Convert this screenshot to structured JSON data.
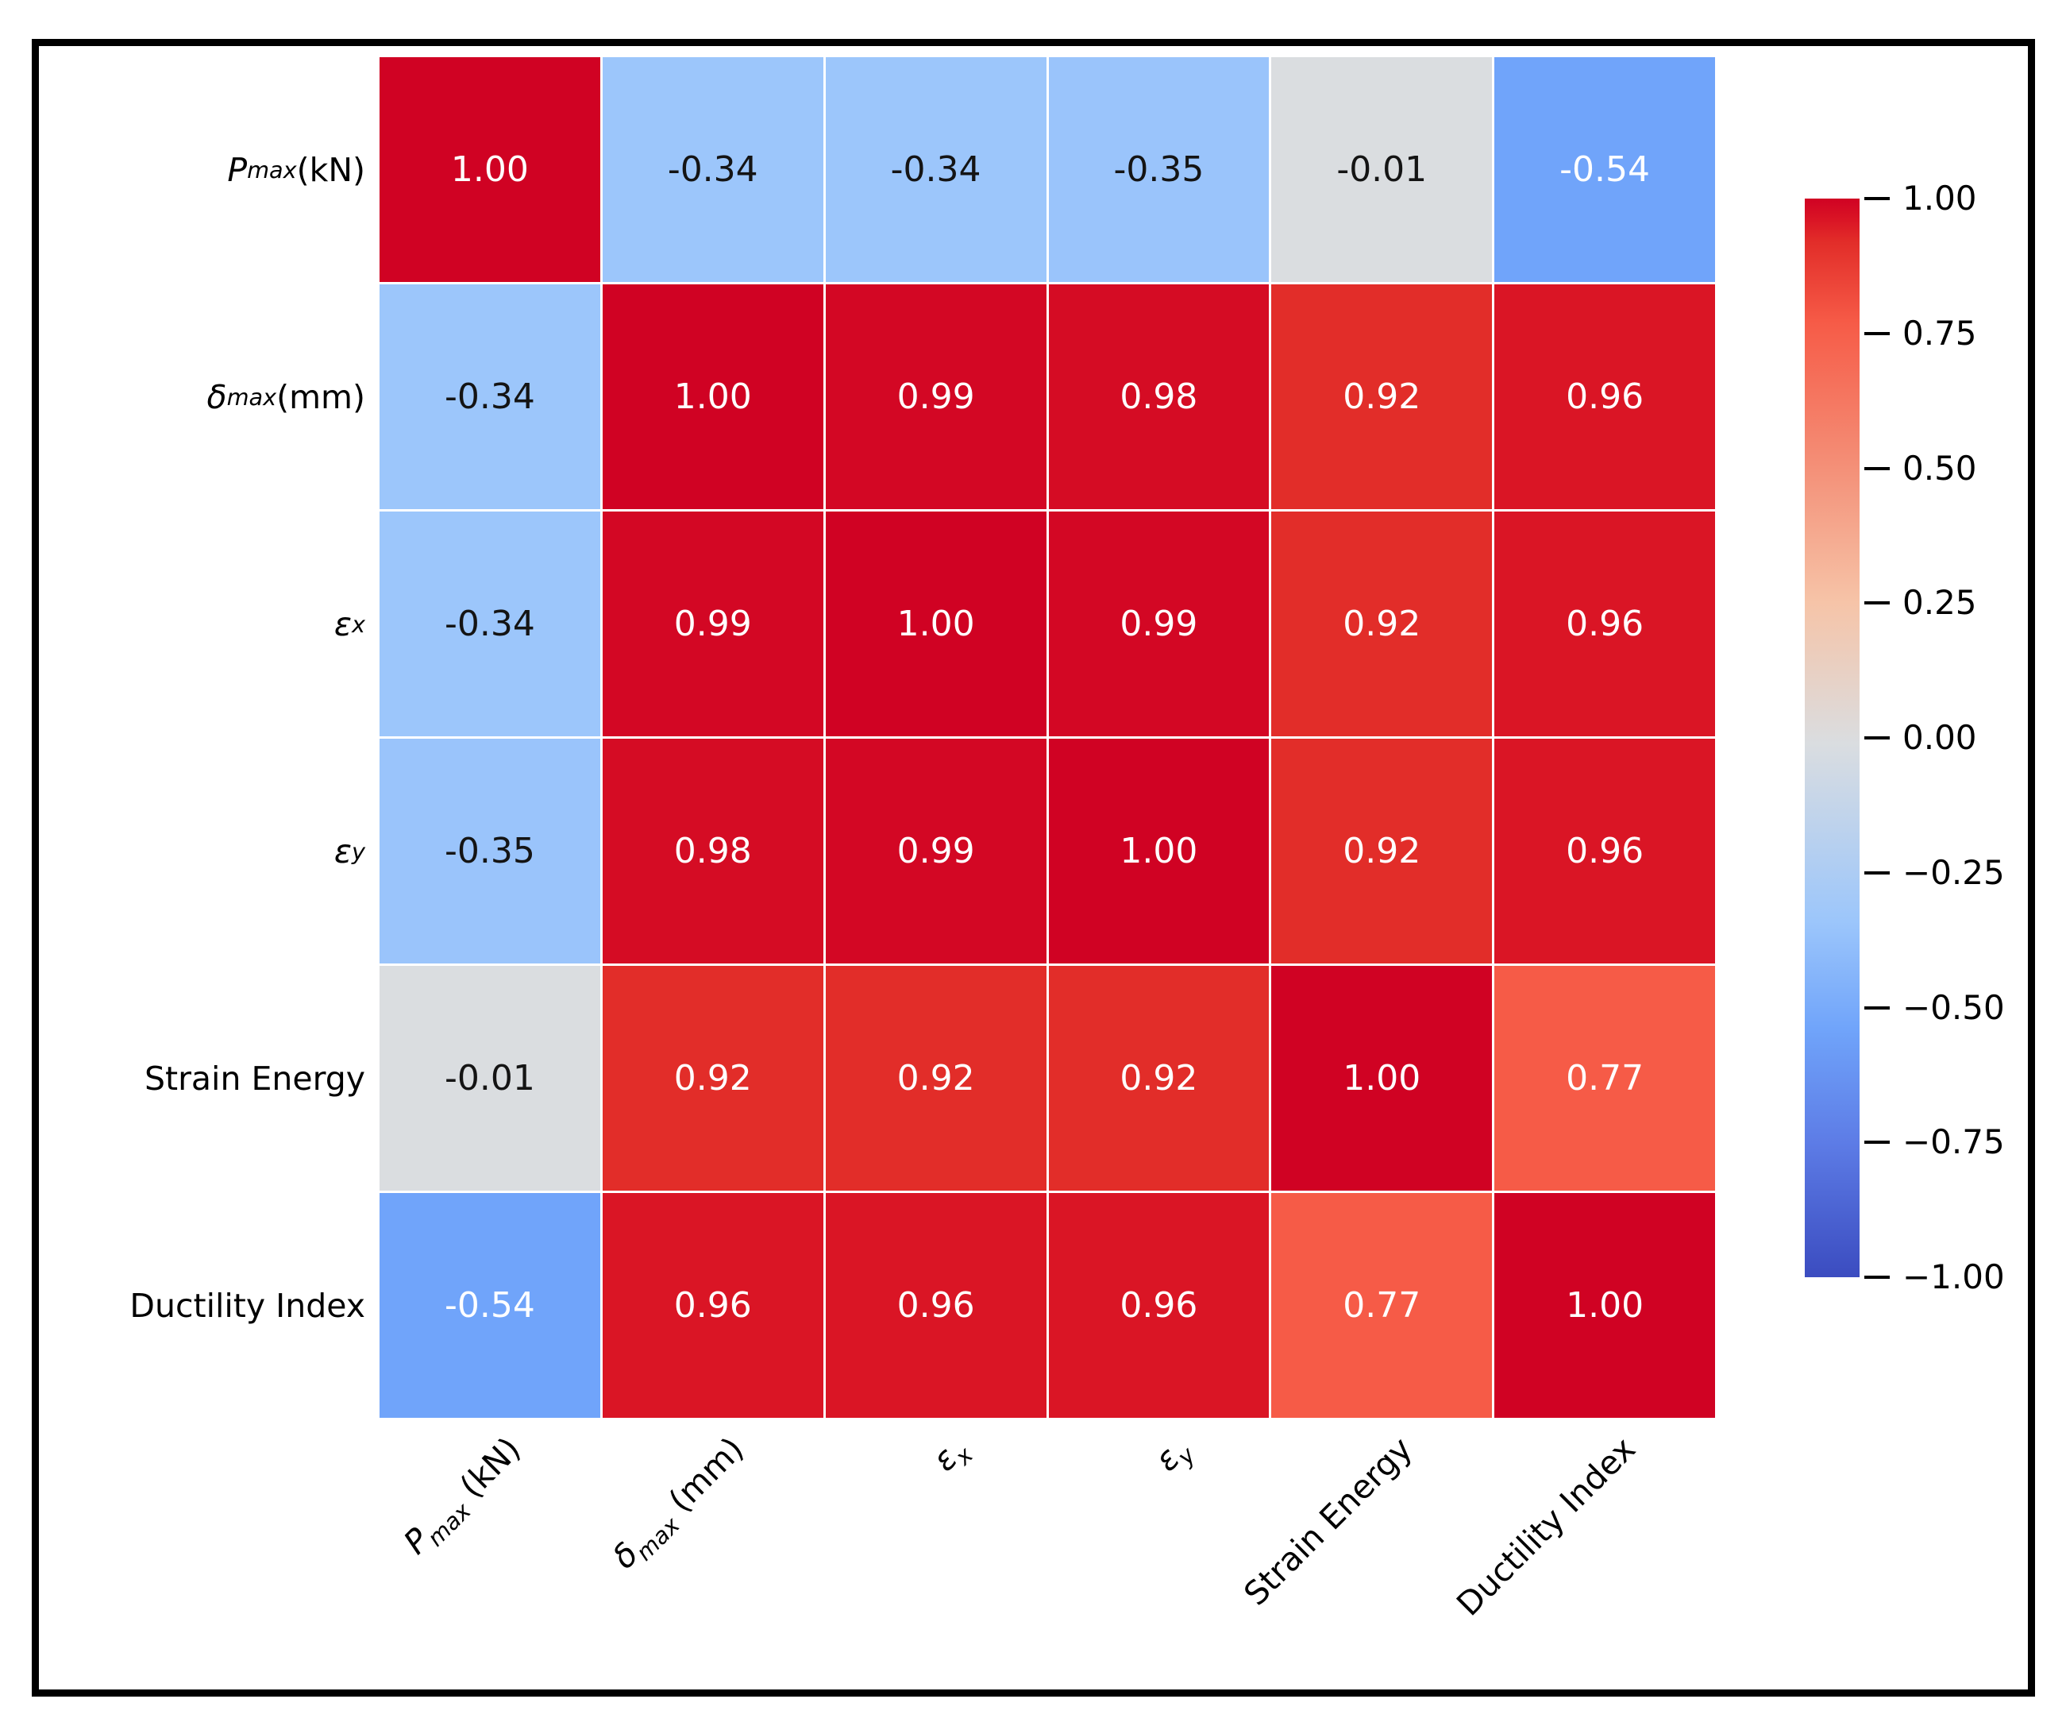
{
  "figure": {
    "background": "#ffffff",
    "frame_color": "#000000"
  },
  "chart_data": {
    "type": "heatmap",
    "title": "",
    "xlabel": "",
    "ylabel": "",
    "categories": [
      "P_max (kN)",
      "δ_max (mm)",
      "ε_x",
      "ε_y",
      "Strain Energy",
      "Ductility Index"
    ],
    "matrix": [
      [
        1.0,
        -0.34,
        -0.34,
        -0.35,
        -0.01,
        -0.54
      ],
      [
        -0.34,
        1.0,
        0.99,
        0.98,
        0.92,
        0.96
      ],
      [
        -0.34,
        0.99,
        1.0,
        0.99,
        0.92,
        0.96
      ],
      [
        -0.35,
        0.98,
        0.99,
        1.0,
        0.92,
        0.96
      ],
      [
        -0.01,
        0.92,
        0.92,
        0.92,
        1.0,
        0.77
      ],
      [
        -0.54,
        0.96,
        0.96,
        0.96,
        0.77,
        1.0
      ]
    ],
    "vmin": -1,
    "vmax": 1,
    "colormap": "coolwarm",
    "grid_line_color": "#ffffff",
    "legend_position": "right-colorbar",
    "colorbar_ticks": [
      "1.00",
      "0.75",
      "0.50",
      "0.25",
      "0.00",
      "−0.25",
      "−0.50",
      "−0.75",
      "−1.00"
    ],
    "color_stops": [
      {
        "v": -1.0,
        "c": "#3b4cc0"
      },
      {
        "v": -0.75,
        "c": "#5d7ce6"
      },
      {
        "v": -0.54,
        "c": "#70a4fa"
      },
      {
        "v": -0.34,
        "c": "#9cc6fb"
      },
      {
        "v": -0.01,
        "c": "#dadde0"
      },
      {
        "v": 0.25,
        "c": "#f6c4a8"
      },
      {
        "v": 0.5,
        "c": "#f49078"
      },
      {
        "v": 0.77,
        "c": "#f65b47"
      },
      {
        "v": 0.92,
        "c": "#e22d29"
      },
      {
        "v": 0.96,
        "c": "#da1525"
      },
      {
        "v": 1.0,
        "c": "#d00223"
      }
    ],
    "text_rule": {
      "threshold": 0.5,
      "light": "#ffffff",
      "dark": "#141414"
    },
    "label_parts": [
      {
        "base": "P",
        "italic": true,
        "sub": "max",
        "suffix": " (kN)"
      },
      {
        "base": "δ",
        "italic": true,
        "sub": "max",
        "suffix": " (mm)"
      },
      {
        "base": "ε",
        "italic": true,
        "sub": "x",
        "suffix": ""
      },
      {
        "base": "ε",
        "italic": true,
        "sub": "y",
        "suffix": ""
      },
      {
        "base": "Strain Energy",
        "italic": false,
        "sub": "",
        "suffix": ""
      },
      {
        "base": "Ductility Index",
        "italic": false,
        "sub": "",
        "suffix": ""
      }
    ]
  }
}
